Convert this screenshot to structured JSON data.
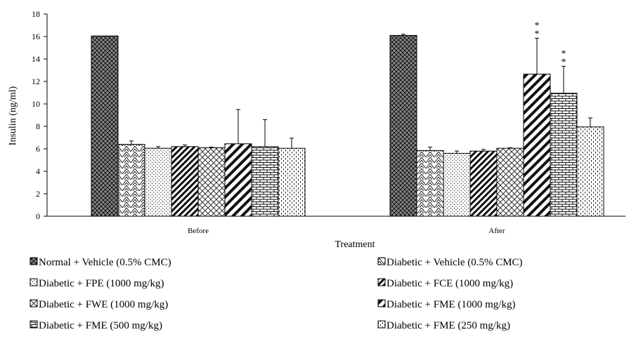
{
  "chart_data": {
    "type": "bar",
    "title": "",
    "xlabel": "Treatment",
    "ylabel": "Insulin (ng/ml)",
    "ylim": [
      0,
      18
    ],
    "yticks": [
      0,
      2,
      4,
      6,
      8,
      10,
      12,
      14,
      16,
      18
    ],
    "grid": false,
    "legend_position": "bottom",
    "categories": [
      "Before",
      "After"
    ],
    "series": [
      {
        "name": "Normal + Vehicle (0.5% CMC)",
        "values": [
          16.05,
          16.1
        ],
        "errors": [
          0,
          0.1
        ],
        "annotations": [
          "",
          ""
        ]
      },
      {
        "name": "Diabetic + Vehicle (0.5% CMC)",
        "values": [
          6.4,
          5.85
        ],
        "errors": [
          0.3,
          0.3
        ],
        "annotations": [
          "",
          ""
        ]
      },
      {
        "name": "Diabetic + FPE (1000 mg/kg)",
        "values": [
          6.05,
          5.6
        ],
        "errors": [
          0.15,
          0.2
        ],
        "annotations": [
          "",
          ""
        ]
      },
      {
        "name": "Diabetic + FCE (1000 mg/kg)",
        "values": [
          6.2,
          5.8
        ],
        "errors": [
          0.15,
          0.15
        ],
        "annotations": [
          "",
          ""
        ]
      },
      {
        "name": "Diabetic + FWE (1000 mg/kg)",
        "values": [
          6.1,
          6.05
        ],
        "errors": [
          0.05,
          0.05
        ],
        "annotations": [
          "",
          ""
        ]
      },
      {
        "name": "Diabetic + FME (1000 mg/kg)",
        "values": [
          6.45,
          12.65
        ],
        "errors": [
          3.05,
          3.2
        ],
        "annotations": [
          "",
          "**"
        ]
      },
      {
        "name": "Diabetic + FME (500 mg/kg)",
        "values": [
          6.2,
          10.95
        ],
        "errors": [
          2.4,
          2.4
        ],
        "annotations": [
          "",
          "**"
        ]
      },
      {
        "name": "Diabetic + FME (250 mg/kg)",
        "values": [
          6.05,
          7.95
        ],
        "errors": [
          0.9,
          0.8
        ],
        "annotations": [
          "",
          ""
        ]
      }
    ]
  }
}
